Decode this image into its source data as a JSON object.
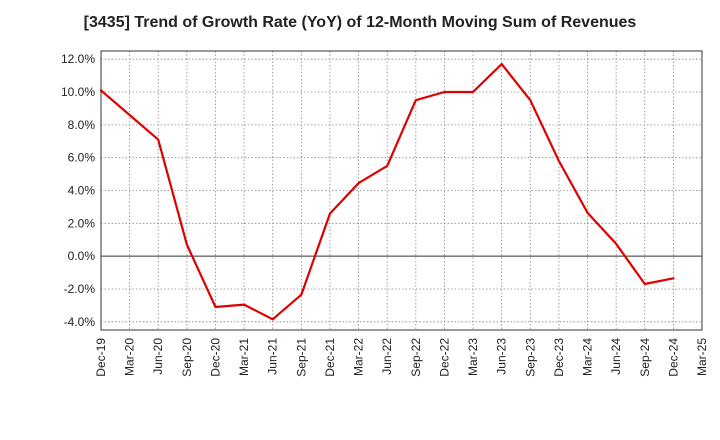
{
  "chart_data": {
    "type": "line",
    "title": "[3435]  Trend of Growth Rate (YoY) of 12-Month Moving Sum of Revenues",
    "xlabel": "",
    "ylabel": "",
    "ylim": [
      -4.5,
      12.5
    ],
    "yticks": [
      -4.0,
      -2.0,
      0.0,
      2.0,
      4.0,
      6.0,
      8.0,
      10.0,
      12.0
    ],
    "ytick_labels": [
      "-4.0%",
      "-2.0%",
      "0.0%",
      "2.0%",
      "4.0%",
      "6.0%",
      "8.0%",
      "10.0%",
      "12.0%"
    ],
    "categories": [
      "Dec-19",
      "Mar-20",
      "Jun-20",
      "Sep-20",
      "Dec-20",
      "Mar-21",
      "Jun-21",
      "Sep-21",
      "Dec-21",
      "Mar-22",
      "Jun-22",
      "Sep-22",
      "Dec-22",
      "Mar-23",
      "Jun-23",
      "Sep-23",
      "Dec-23",
      "Mar-24",
      "Jun-24",
      "Sep-24",
      "Dec-24",
      "Mar-25"
    ],
    "grid": true,
    "line_color": "#e00000",
    "series": [
      {
        "values": [
          10.1,
          8.6,
          7.1,
          0.7,
          -3.1,
          -2.95,
          -3.85,
          -2.35,
          2.6,
          4.45,
          5.5,
          9.5,
          10.0,
          10.0,
          11.7,
          9.5,
          5.8,
          2.65,
          0.75,
          -1.7,
          -1.35,
          null
        ]
      }
    ]
  }
}
